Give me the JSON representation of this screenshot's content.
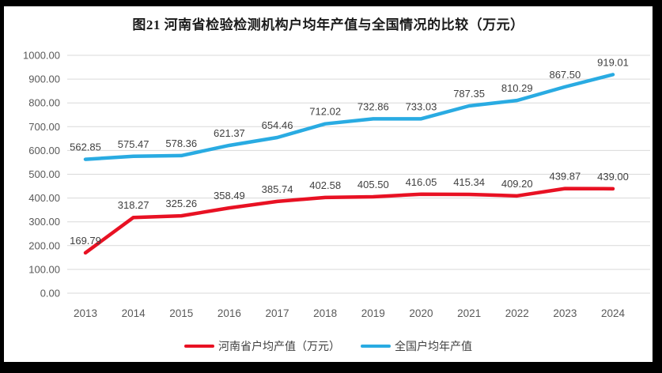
{
  "window": {
    "border_color": "#000000",
    "background_color": "#ffffff"
  },
  "chart_data": {
    "type": "line",
    "title": "图21  河南省检验检测机构户均年产值与全国情况的比较（万元）",
    "categories": [
      "2013",
      "2014",
      "2015",
      "2016",
      "2017",
      "2018",
      "2019",
      "2020",
      "2021",
      "2022",
      "2023",
      "2024"
    ],
    "series": [
      {
        "name": "河南省户均产值（万元）",
        "color": "#e81123",
        "values": [
          169.79,
          318.27,
          325.26,
          358.49,
          385.74,
          402.58,
          405.5,
          416.05,
          415.34,
          409.2,
          439.87,
          439.0
        ]
      },
      {
        "name": "全国户均年产值",
        "color": "#29abe2",
        "values": [
          562.85,
          575.47,
          578.36,
          621.37,
          654.46,
          712.02,
          732.86,
          733.03,
          787.35,
          810.29,
          867.5,
          919.01
        ]
      }
    ],
    "ylim": [
      0,
      1000
    ],
    "ytick_step": 100,
    "ytick_labels": [
      "0.00",
      "100.00",
      "200.00",
      "300.00",
      "400.00",
      "500.00",
      "600.00",
      "700.00",
      "800.00",
      "900.00",
      "1000.00"
    ],
    "grid": true,
    "data_labels": true,
    "data_label_format": "2-decimals",
    "legend_position": "bottom",
    "colors": {
      "grid": "#d9d9d9",
      "axis_text": "#595959",
      "data_label_text": "#404040",
      "title_text": "#1a1a1a"
    }
  }
}
